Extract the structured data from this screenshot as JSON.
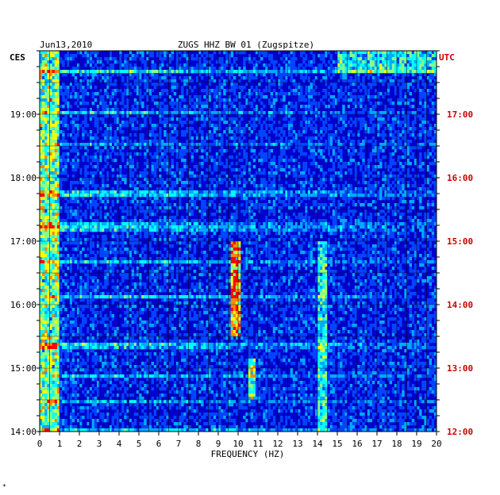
{
  "header": {
    "date": "Jun13,2010",
    "station": "ZUGS HHZ BW 01 (Zugspitze)",
    "left_tz": "CES",
    "right_tz": "UTC"
  },
  "footer": {
    "corner_mark": "*"
  },
  "colors": {
    "background": "#0000cc",
    "grid": "#000000",
    "utc_text": "#cc0000",
    "text": "#000000"
  },
  "chart_data": {
    "type": "heatmap",
    "title": "ZUGS HHZ BW 01 (Zugspitze)",
    "xlabel": "FREQUENCY (HZ)",
    "xlim": [
      0,
      20
    ],
    "x_ticks": [
      "0",
      "1",
      "2",
      "3",
      "4",
      "5",
      "6",
      "7",
      "8",
      "9",
      "10",
      "11",
      "12",
      "13",
      "14",
      "15",
      "16",
      "17",
      "18",
      "19",
      "20"
    ],
    "y_ticks_left": [
      "19:00",
      "18:00",
      "17:00",
      "16:00",
      "15:00",
      "14:00"
    ],
    "y_ticks_right": [
      "17:00",
      "16:00",
      "15:00",
      "14:00",
      "13:00",
      "12:00"
    ],
    "y_range_hours_cest": [
      14,
      20
    ],
    "color_scale": [
      "#0000cc",
      "#0044ff",
      "#00aaff",
      "#00ffff",
      "#88ff88",
      "#ffff00",
      "#ff8800",
      "#ff0000"
    ],
    "features": [
      {
        "freq_hz": [
          0,
          1
        ],
        "time_range": "14:00-20:00",
        "level": "high"
      },
      {
        "freq_hz": [
          9.6,
          10.1
        ],
        "time_range": "15:30-17:00",
        "level": "peak"
      },
      {
        "freq_hz": [
          10.5,
          10.9
        ],
        "time_range": "14:30-15:10",
        "level": "high"
      },
      {
        "freq_hz": [
          14,
          14.5
        ],
        "time_range": "14:00-17:00",
        "level": "medium"
      },
      {
        "freq_hz": [
          15,
          20
        ],
        "time_range": "19:40-20:00",
        "level": "medium"
      }
    ]
  }
}
